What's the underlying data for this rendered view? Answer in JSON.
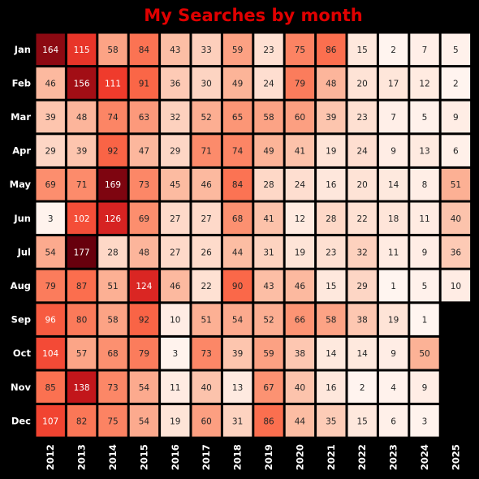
{
  "chart_data": {
    "type": "heatmap",
    "title": "My Searches by month",
    "title_color": "#e00000",
    "background": "#000000",
    "colormap": "Reds",
    "xlabel": "",
    "ylabel": "",
    "rows": [
      "Jan",
      "Feb",
      "Mar",
      "Apr",
      "May",
      "Jun",
      "Jul",
      "Aug",
      "Sep",
      "Oct",
      "Nov",
      "Dec"
    ],
    "columns": [
      "2012",
      "2013",
      "2014",
      "2015",
      "2016",
      "2017",
      "2018",
      "2019",
      "2020",
      "2021",
      "2022",
      "2023",
      "2024",
      "2025"
    ],
    "values": [
      [
        164,
        115,
        58,
        84,
        43,
        33,
        59,
        23,
        75,
        86,
        15,
        2,
        7,
        5
      ],
      [
        46,
        156,
        111,
        91,
        36,
        30,
        49,
        24,
        79,
        48,
        20,
        17,
        12,
        2
      ],
      [
        39,
        48,
        74,
        63,
        32,
        52,
        65,
        58,
        60,
        39,
        23,
        7,
        5,
        9
      ],
      [
        29,
        39,
        92,
        47,
        29,
        71,
        74,
        49,
        41,
        19,
        24,
        9,
        13,
        6
      ],
      [
        69,
        71,
        169,
        73,
        45,
        46,
        84,
        28,
        24,
        16,
        20,
        14,
        8,
        51
      ],
      [
        3,
        102,
        126,
        69,
        27,
        27,
        68,
        41,
        12,
        28,
        22,
        18,
        11,
        40
      ],
      [
        54,
        177,
        28,
        48,
        27,
        26,
        44,
        31,
        19,
        23,
        32,
        11,
        9,
        36
      ],
      [
        79,
        87,
        51,
        124,
        46,
        22,
        90,
        43,
        46,
        15,
        29,
        1,
        5,
        10
      ],
      [
        96,
        80,
        58,
        92,
        10,
        51,
        54,
        52,
        66,
        58,
        38,
        19,
        1,
        null
      ],
      [
        104,
        57,
        68,
        79,
        3,
        73,
        39,
        59,
        38,
        14,
        14,
        9,
        50,
        null
      ],
      [
        85,
        138,
        73,
        54,
        11,
        40,
        13,
        67,
        40,
        16,
        2,
        4,
        9,
        null
      ],
      [
        107,
        82,
        75,
        54,
        19,
        60,
        31,
        86,
        44,
        35,
        15,
        6,
        3,
        null
      ]
    ],
    "vmin": 1,
    "vmax": 177,
    "annotations": true,
    "colorbar": false
  }
}
